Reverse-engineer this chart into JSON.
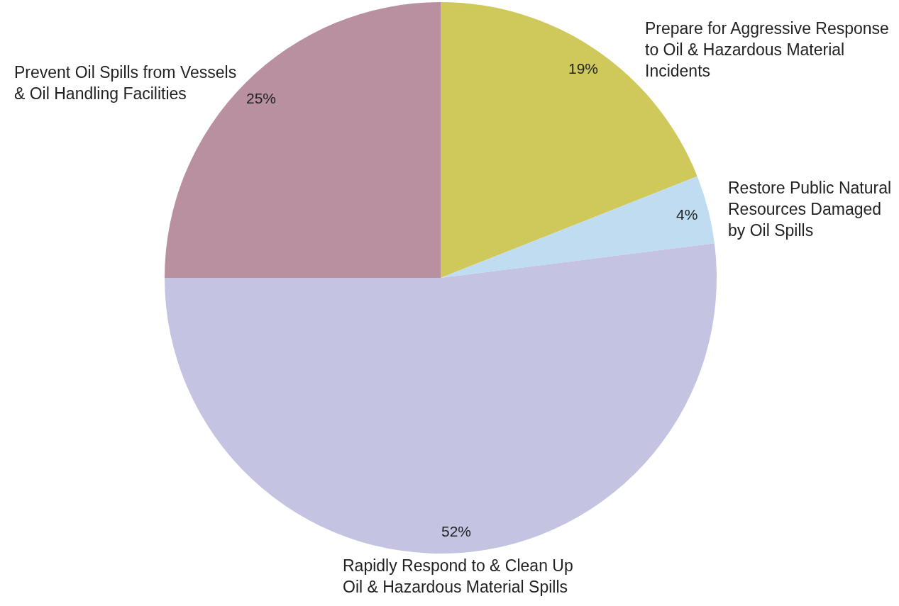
{
  "chart_data": {
    "type": "pie",
    "categories": [
      "Prepare for Aggressive Response to Oil & Hazardous Material Incidents",
      "Restore Public Natural Resources Damaged by Oil Spills",
      "Rapidly Respond to & Clean Up Oil & Hazardous Material Spills",
      "Prevent Oil Spills from Vessels & Oil Handling Facilities"
    ],
    "values": [
      19,
      4,
      52,
      25
    ],
    "value_labels": [
      "19%",
      "4%",
      "52%",
      "25%"
    ],
    "colors": [
      "#cfc85a",
      "#bfdcf0",
      "#c4c4e2",
      "#b8909f"
    ],
    "legend": false
  }
}
